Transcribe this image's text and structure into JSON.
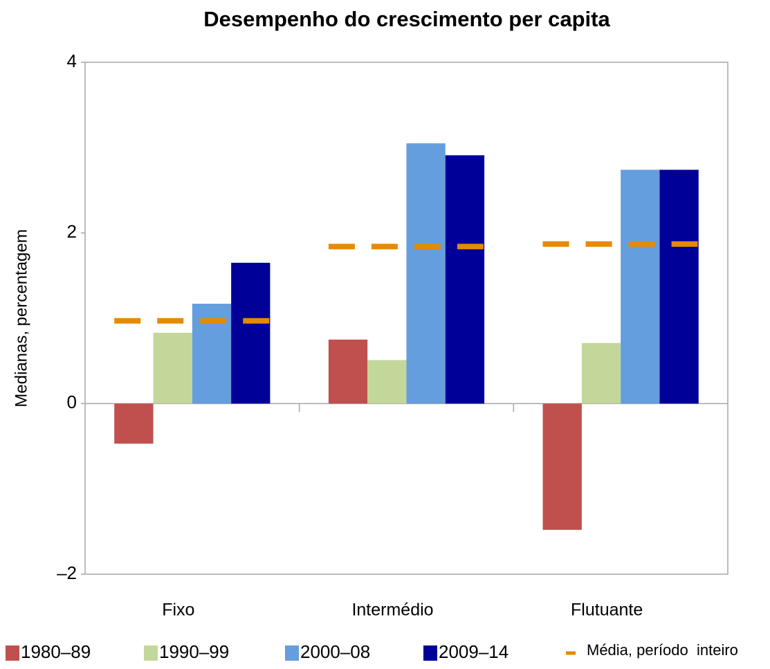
{
  "chart_data": {
    "type": "bar",
    "title": "Desempenho do crescimento per capita",
    "y_label": "Medianas, percentagem",
    "categories": [
      "Fixo",
      "Intermédio",
      "Flutuante"
    ],
    "series": [
      {
        "name": "1980–89",
        "color": "#c0504d",
        "values": [
          -0.47,
          0.75,
          -1.48
        ]
      },
      {
        "name": "1990–99",
        "color": "#c4d79b",
        "values": [
          0.83,
          0.51,
          0.71
        ]
      },
      {
        "name": "2000–08",
        "color": "#659ede",
        "values": [
          1.17,
          3.05,
          2.74
        ]
      },
      {
        "name": "2009–14",
        "color": "#000099",
        "values": [
          1.65,
          2.91,
          2.74
        ]
      },
      {
        "name": "Média, período  inteiro",
        "color": "#e68a00",
        "style": "dash",
        "values": [
          0.97,
          1.84,
          1.87
        ]
      }
    ],
    "ylim": [
      -2,
      4
    ],
    "yticks": [
      {
        "value": -2,
        "label": "–2"
      },
      0,
      2,
      4
    ]
  }
}
